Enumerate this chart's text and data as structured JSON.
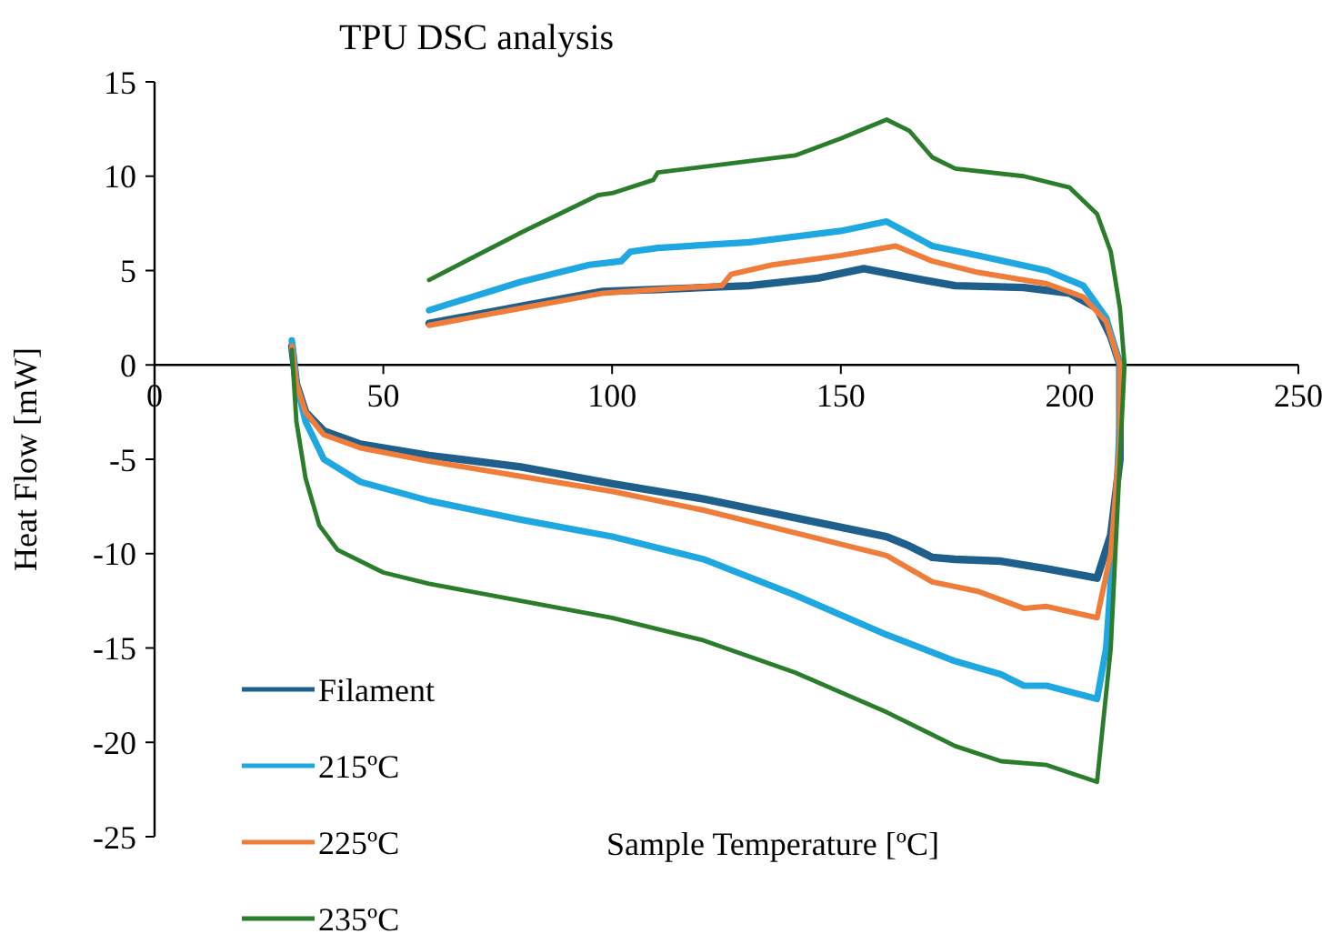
{
  "chart_data": {
    "type": "line",
    "title": "TPU DSC analysis",
    "xlabel": "Sample Temperature [ºC]",
    "ylabel": "Heat Flow [mW]",
    "xlim": [
      0,
      250
    ],
    "xticks": [
      0,
      50,
      100,
      150,
      200,
      250
    ],
    "ylim": [
      -25,
      15
    ],
    "yticks": [
      -25,
      -20,
      -15,
      -10,
      -5,
      0,
      5,
      10,
      15
    ],
    "grid": false,
    "legend": "bottom left",
    "marker": "none",
    "line_style": "solid",
    "series": [
      {
        "name": "Filament",
        "color": "#1f5f8b",
        "x": [
          30,
          31,
          33,
          37,
          45,
          60,
          80,
          100,
          120,
          140,
          160,
          165,
          170,
          175,
          185,
          195,
          206,
          209,
          211,
          211,
          209,
          206,
          200,
          190,
          175,
          168,
          155,
          145,
          130,
          110,
          98,
          80,
          60
        ],
        "values": [
          1.0,
          -1,
          -2.5,
          -3.5,
          -4.2,
          -4.8,
          -5.4,
          -6.3,
          -7.1,
          -8.1,
          -9.1,
          -9.6,
          -10.2,
          -10.3,
          -10.4,
          -10.8,
          -11.3,
          -9,
          -5,
          0,
          1.5,
          3,
          3.8,
          4.1,
          4.2,
          4.5,
          5.1,
          4.6,
          4.2,
          4.0,
          3.9,
          3.1,
          2.2
        ]
      },
      {
        "name": "215ºC",
        "color": "#1ea7e1",
        "x": [
          30,
          31,
          33,
          37,
          45,
          60,
          80,
          100,
          120,
          140,
          160,
          175,
          185,
          190,
          195,
          206,
          208,
          210,
          211,
          211,
          208,
          203,
          195,
          180,
          170,
          160,
          150,
          130,
          110,
          104,
          102,
          95,
          80,
          60
        ],
        "values": [
          1.3,
          -1,
          -3,
          -5,
          -6.2,
          -7.2,
          -8.2,
          -9.1,
          -10.3,
          -12.2,
          -14.3,
          -15.7,
          -16.4,
          -17,
          -17,
          -17.7,
          -15,
          -8,
          -3,
          0,
          2.5,
          4.2,
          5,
          5.8,
          6.3,
          7.6,
          7.1,
          6.5,
          6.2,
          6.0,
          5.5,
          5.3,
          4.4,
          2.9
        ]
      },
      {
        "name": "225ºC",
        "color": "#f07c3a",
        "x": [
          30,
          31,
          33,
          37,
          45,
          60,
          80,
          100,
          120,
          140,
          160,
          165,
          170,
          180,
          190,
          195,
          206,
          209,
          211,
          211,
          208,
          203,
          195,
          180,
          170,
          162,
          150,
          135,
          126,
          124,
          110,
          98,
          80,
          60
        ],
        "values": [
          1.0,
          -1,
          -2.5,
          -3.7,
          -4.4,
          -5.1,
          -5.9,
          -6.7,
          -7.7,
          -8.9,
          -10.1,
          -10.8,
          -11.5,
          -12,
          -12.9,
          -12.8,
          -13.4,
          -10,
          -4,
          0,
          2.3,
          3.6,
          4.3,
          4.9,
          5.5,
          6.3,
          5.8,
          5.3,
          4.8,
          4.2,
          4.0,
          3.8,
          3.0,
          2.1
        ]
      },
      {
        "name": "235ºC",
        "color": "#2a7d2a",
        "x": [
          30,
          31,
          33,
          36,
          40,
          50,
          60,
          80,
          100,
          120,
          140,
          160,
          175,
          185,
          195,
          206,
          209,
          211,
          212,
          211,
          209,
          206,
          200,
          190,
          175,
          170,
          165,
          160,
          150,
          140,
          120,
          110,
          109,
          100,
          97,
          80,
          60
        ],
        "values": [
          0.8,
          -3,
          -6,
          -8.5,
          -9.8,
          -11,
          -11.6,
          -12.5,
          -13.4,
          -14.6,
          -16.3,
          -18.4,
          -20.2,
          -21.0,
          -21.2,
          -22.1,
          -15,
          -5,
          0,
          3,
          6,
          8,
          9.4,
          10,
          10.4,
          11,
          12.4,
          13,
          12,
          11.1,
          10.5,
          10.2,
          9.8,
          9.1,
          9,
          7,
          4.5
        ]
      }
    ]
  }
}
